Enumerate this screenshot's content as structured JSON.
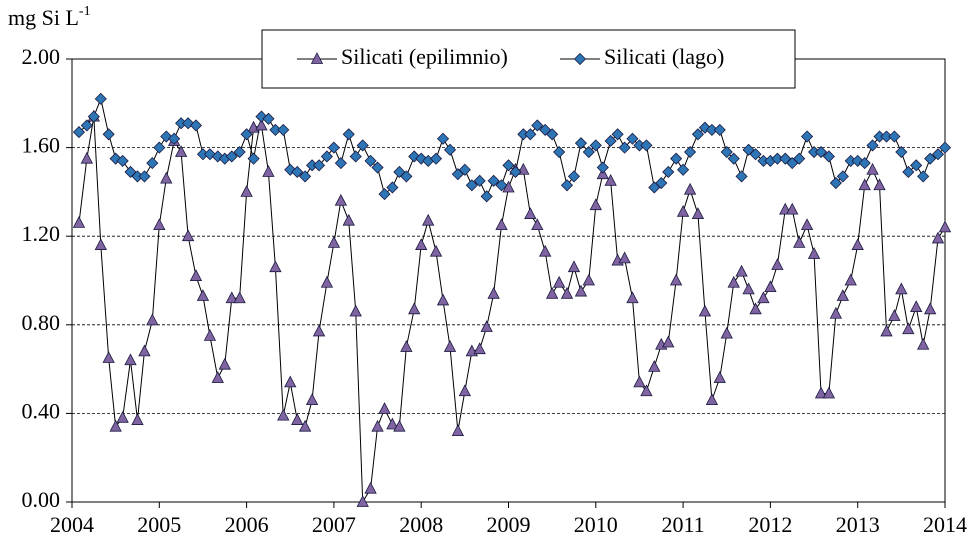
{
  "chart_data": {
    "type": "line",
    "ylabel": {
      "text": "mg Si L",
      "superscript": "-1"
    },
    "x": [
      2004.08,
      2004.17,
      2004.25,
      2004.33,
      2004.42,
      2004.5,
      2004.58,
      2004.67,
      2004.75,
      2004.83,
      2004.92,
      2005.0,
      2005.08,
      2005.17,
      2005.25,
      2005.33,
      2005.42,
      2005.5,
      2005.58,
      2005.67,
      2005.75,
      2005.83,
      2005.92,
      2006.0,
      2006.08,
      2006.17,
      2006.25,
      2006.33,
      2006.42,
      2006.5,
      2006.58,
      2006.67,
      2006.75,
      2006.83,
      2006.92,
      2007.0,
      2007.08,
      2007.17,
      2007.25,
      2007.33,
      2007.42,
      2007.5,
      2007.58,
      2007.67,
      2007.75,
      2007.83,
      2007.92,
      2008.0,
      2008.08,
      2008.17,
      2008.25,
      2008.33,
      2008.42,
      2008.5,
      2008.58,
      2008.67,
      2008.75,
      2008.83,
      2008.92,
      2009.0,
      2009.08,
      2009.17,
      2009.25,
      2009.33,
      2009.42,
      2009.5,
      2009.58,
      2009.67,
      2009.75,
      2009.83,
      2009.92,
      2010.0,
      2010.08,
      2010.17,
      2010.25,
      2010.33,
      2010.42,
      2010.5,
      2010.58,
      2010.67,
      2010.75,
      2010.83,
      2010.92,
      2011.0,
      2011.08,
      2011.17,
      2011.25,
      2011.33,
      2011.42,
      2011.5,
      2011.58,
      2011.67,
      2011.75,
      2011.83,
      2011.92,
      2012.0,
      2012.08,
      2012.17,
      2012.25,
      2012.33,
      2012.42,
      2012.5,
      2012.58,
      2012.67,
      2012.75,
      2012.83,
      2012.92,
      2013.0,
      2013.08,
      2013.17,
      2013.25,
      2013.33,
      2013.42,
      2013.5,
      2013.58,
      2013.67,
      2013.75,
      2013.83,
      2013.92,
      2014.0
    ],
    "series": [
      {
        "name": "Silicati (epilimnio)",
        "color": "#8064a2",
        "marker": "triangle",
        "values": [
          1.26,
          1.55,
          1.74,
          1.16,
          0.65,
          0.34,
          0.38,
          0.64,
          0.37,
          0.68,
          0.82,
          1.25,
          1.46,
          1.63,
          1.58,
          1.2,
          1.02,
          0.93,
          0.75,
          0.56,
          0.62,
          0.92,
          0.92,
          1.4,
          1.69,
          1.7,
          1.49,
          1.06,
          0.39,
          0.54,
          0.37,
          0.34,
          0.46,
          0.77,
          0.99,
          1.17,
          1.36,
          1.27,
          0.86,
          0.0,
          0.06,
          0.34,
          0.42,
          0.35,
          0.34,
          0.7,
          0.87,
          1.16,
          1.27,
          1.13,
          0.91,
          0.7,
          0.32,
          0.5,
          0.68,
          0.69,
          0.79,
          0.94,
          1.25,
          1.42,
          1.5,
          1.5,
          1.3,
          1.25,
          1.13,
          0.94,
          0.99,
          0.94,
          1.06,
          0.95,
          1.0,
          1.34,
          1.48,
          1.45,
          1.09,
          1.1,
          0.92,
          0.54,
          0.5,
          0.61,
          0.71,
          0.72,
          1.0,
          1.31,
          1.41,
          1.3,
          0.86,
          0.46,
          0.56,
          0.76,
          0.99,
          1.04,
          0.96,
          0.87,
          0.92,
          0.97,
          1.07,
          1.32,
          1.32,
          1.17,
          1.25,
          1.12,
          0.49,
          0.49,
          0.85,
          0.93,
          1.0,
          1.16,
          1.43,
          1.5,
          1.43,
          0.77,
          0.84,
          0.96,
          0.78,
          0.88,
          0.71,
          0.87,
          1.19,
          1.24
        ]
      },
      {
        "name": "Silicati (lago)",
        "color": "#2e75b6",
        "marker": "diamond",
        "values": [
          1.67,
          1.7,
          1.74,
          1.82,
          1.66,
          1.55,
          1.54,
          1.49,
          1.47,
          1.47,
          1.53,
          1.6,
          1.65,
          1.64,
          1.71,
          1.71,
          1.7,
          1.57,
          1.57,
          1.56,
          1.55,
          1.56,
          1.58,
          1.66,
          1.55,
          1.74,
          1.73,
          1.68,
          1.68,
          1.5,
          1.49,
          1.47,
          1.52,
          1.52,
          1.56,
          1.6,
          1.53,
          1.66,
          1.56,
          1.61,
          1.54,
          1.51,
          1.39,
          1.42,
          1.49,
          1.47,
          1.56,
          1.55,
          1.54,
          1.55,
          1.64,
          1.59,
          1.48,
          1.5,
          1.43,
          1.45,
          1.38,
          1.45,
          1.43,
          1.52,
          1.49,
          1.66,
          1.66,
          1.7,
          1.68,
          1.66,
          1.58,
          1.43,
          1.47,
          1.62,
          1.58,
          1.61,
          1.51,
          1.63,
          1.66,
          1.6,
          1.64,
          1.61,
          1.61,
          1.42,
          1.44,
          1.49,
          1.55,
          1.5,
          1.58,
          1.66,
          1.69,
          1.68,
          1.68,
          1.58,
          1.55,
          1.47,
          1.59,
          1.57,
          1.54,
          1.54,
          1.55,
          1.55,
          1.53,
          1.55,
          1.65,
          1.58,
          1.58,
          1.56,
          1.44,
          1.47,
          1.54,
          1.54,
          1.53,
          1.61,
          1.65,
          1.65,
          1.65,
          1.58,
          1.49,
          1.52,
          1.47,
          1.55,
          1.57,
          1.6
        ]
      }
    ],
    "xlim": [
      2004,
      2014
    ],
    "xticks": [
      2004,
      2005,
      2006,
      2007,
      2008,
      2009,
      2010,
      2011,
      2012,
      2013,
      2014
    ],
    "ylim": [
      0,
      2
    ],
    "yticks": [
      {
        "value": 0,
        "label": "0.00"
      },
      {
        "value": 0.4,
        "label": "0.40"
      },
      {
        "value": 0.8,
        "label": "0.80"
      },
      {
        "value": 1.2,
        "label": "1.20"
      },
      {
        "value": 1.6,
        "label": "1.60"
      },
      {
        "value": 2,
        "label": "2.00"
      }
    ],
    "grid": true,
    "legend": "top"
  }
}
